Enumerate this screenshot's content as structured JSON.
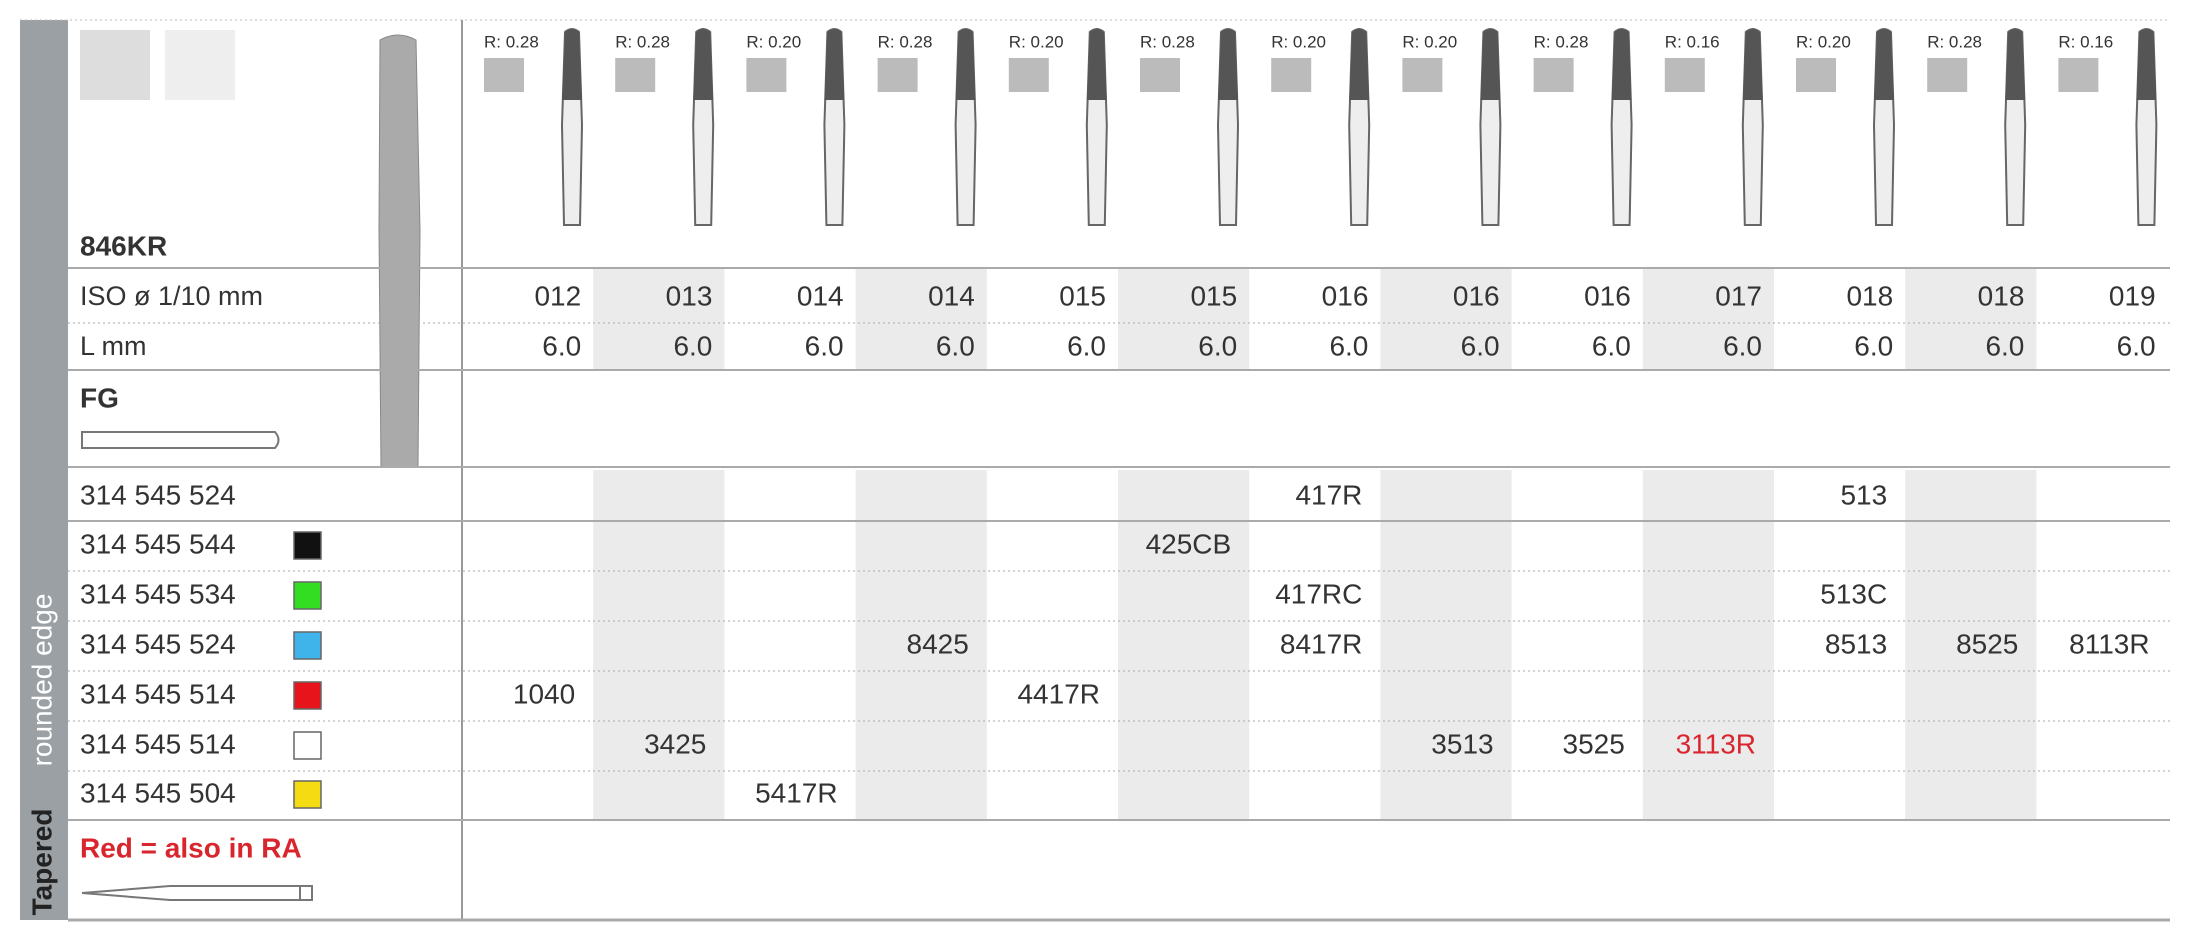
{
  "header": {
    "title": "846KR",
    "iso_label": "ISO ø 1/10 mm",
    "length_label": "L mm",
    "shank_label": "FG",
    "side_label": "rounded edge",
    "shape_label": "Tapered",
    "note": "Red = also in RA",
    "note_color": "#d9262e"
  },
  "columns": [
    {
      "radius": "R: 0.28",
      "iso": "012",
      "length": "6.0"
    },
    {
      "radius": "R: 0.28",
      "iso": "013",
      "length": "6.0"
    },
    {
      "radius": "R: 0.20",
      "iso": "014",
      "length": "6.0"
    },
    {
      "radius": "R: 0.28",
      "iso": "014",
      "length": "6.0"
    },
    {
      "radius": "R: 0.20",
      "iso": "015",
      "length": "6.0"
    },
    {
      "radius": "R: 0.28",
      "iso": "015",
      "length": "6.0"
    },
    {
      "radius": "R: 0.20",
      "iso": "016",
      "length": "6.0"
    },
    {
      "radius": "R: 0.20",
      "iso": "016",
      "length": "6.0"
    },
    {
      "radius": "R: 0.28",
      "iso": "016",
      "length": "6.0"
    },
    {
      "radius": "R: 0.16",
      "iso": "017",
      "length": "6.0"
    },
    {
      "radius": "R: 0.20",
      "iso": "018",
      "length": "6.0"
    },
    {
      "radius": "R: 0.28",
      "iso": "018",
      "length": "6.0"
    },
    {
      "radius": "R: 0.16",
      "iso": "019",
      "length": "6.0"
    }
  ],
  "rows": [
    {
      "code": "314 545 524",
      "swatch": null,
      "cells": [
        null,
        null,
        null,
        null,
        null,
        null,
        "417R",
        null,
        null,
        null,
        "513",
        null,
        null
      ]
    },
    {
      "code": "314 545 544",
      "swatch": "#111111",
      "cells": [
        null,
        null,
        null,
        null,
        null,
        "425CB",
        null,
        null,
        null,
        null,
        null,
        null,
        null
      ]
    },
    {
      "code": "314 545 534",
      "swatch": "#33dd22",
      "cells": [
        null,
        null,
        null,
        null,
        null,
        null,
        "417RC",
        null,
        null,
        null,
        "513C",
        null,
        null
      ]
    },
    {
      "code": "314 545 524",
      "swatch": "#3fb4ea",
      "cells": [
        null,
        null,
        null,
        "8425",
        null,
        null,
        "8417R",
        null,
        null,
        null,
        "8513",
        "8525",
        "8113R"
      ]
    },
    {
      "code": "314 545 514",
      "swatch": "#e8141b",
      "cells": [
        "1040",
        null,
        null,
        null,
        "4417R",
        null,
        null,
        null,
        null,
        null,
        null,
        null,
        null
      ]
    },
    {
      "code": "314 545 514",
      "swatch": "#ffffff",
      "cells": [
        null,
        "3425",
        null,
        null,
        null,
        null,
        null,
        "3513",
        "3525",
        {
          "text": "3113R",
          "color": "#d9262e"
        },
        null,
        null,
        null
      ]
    },
    {
      "code": "314 545 504",
      "swatch": "#f5dc12",
      "cells": [
        null,
        null,
        "5417R",
        null,
        null,
        null,
        null,
        null,
        null,
        null,
        null,
        null,
        null
      ]
    }
  ]
}
